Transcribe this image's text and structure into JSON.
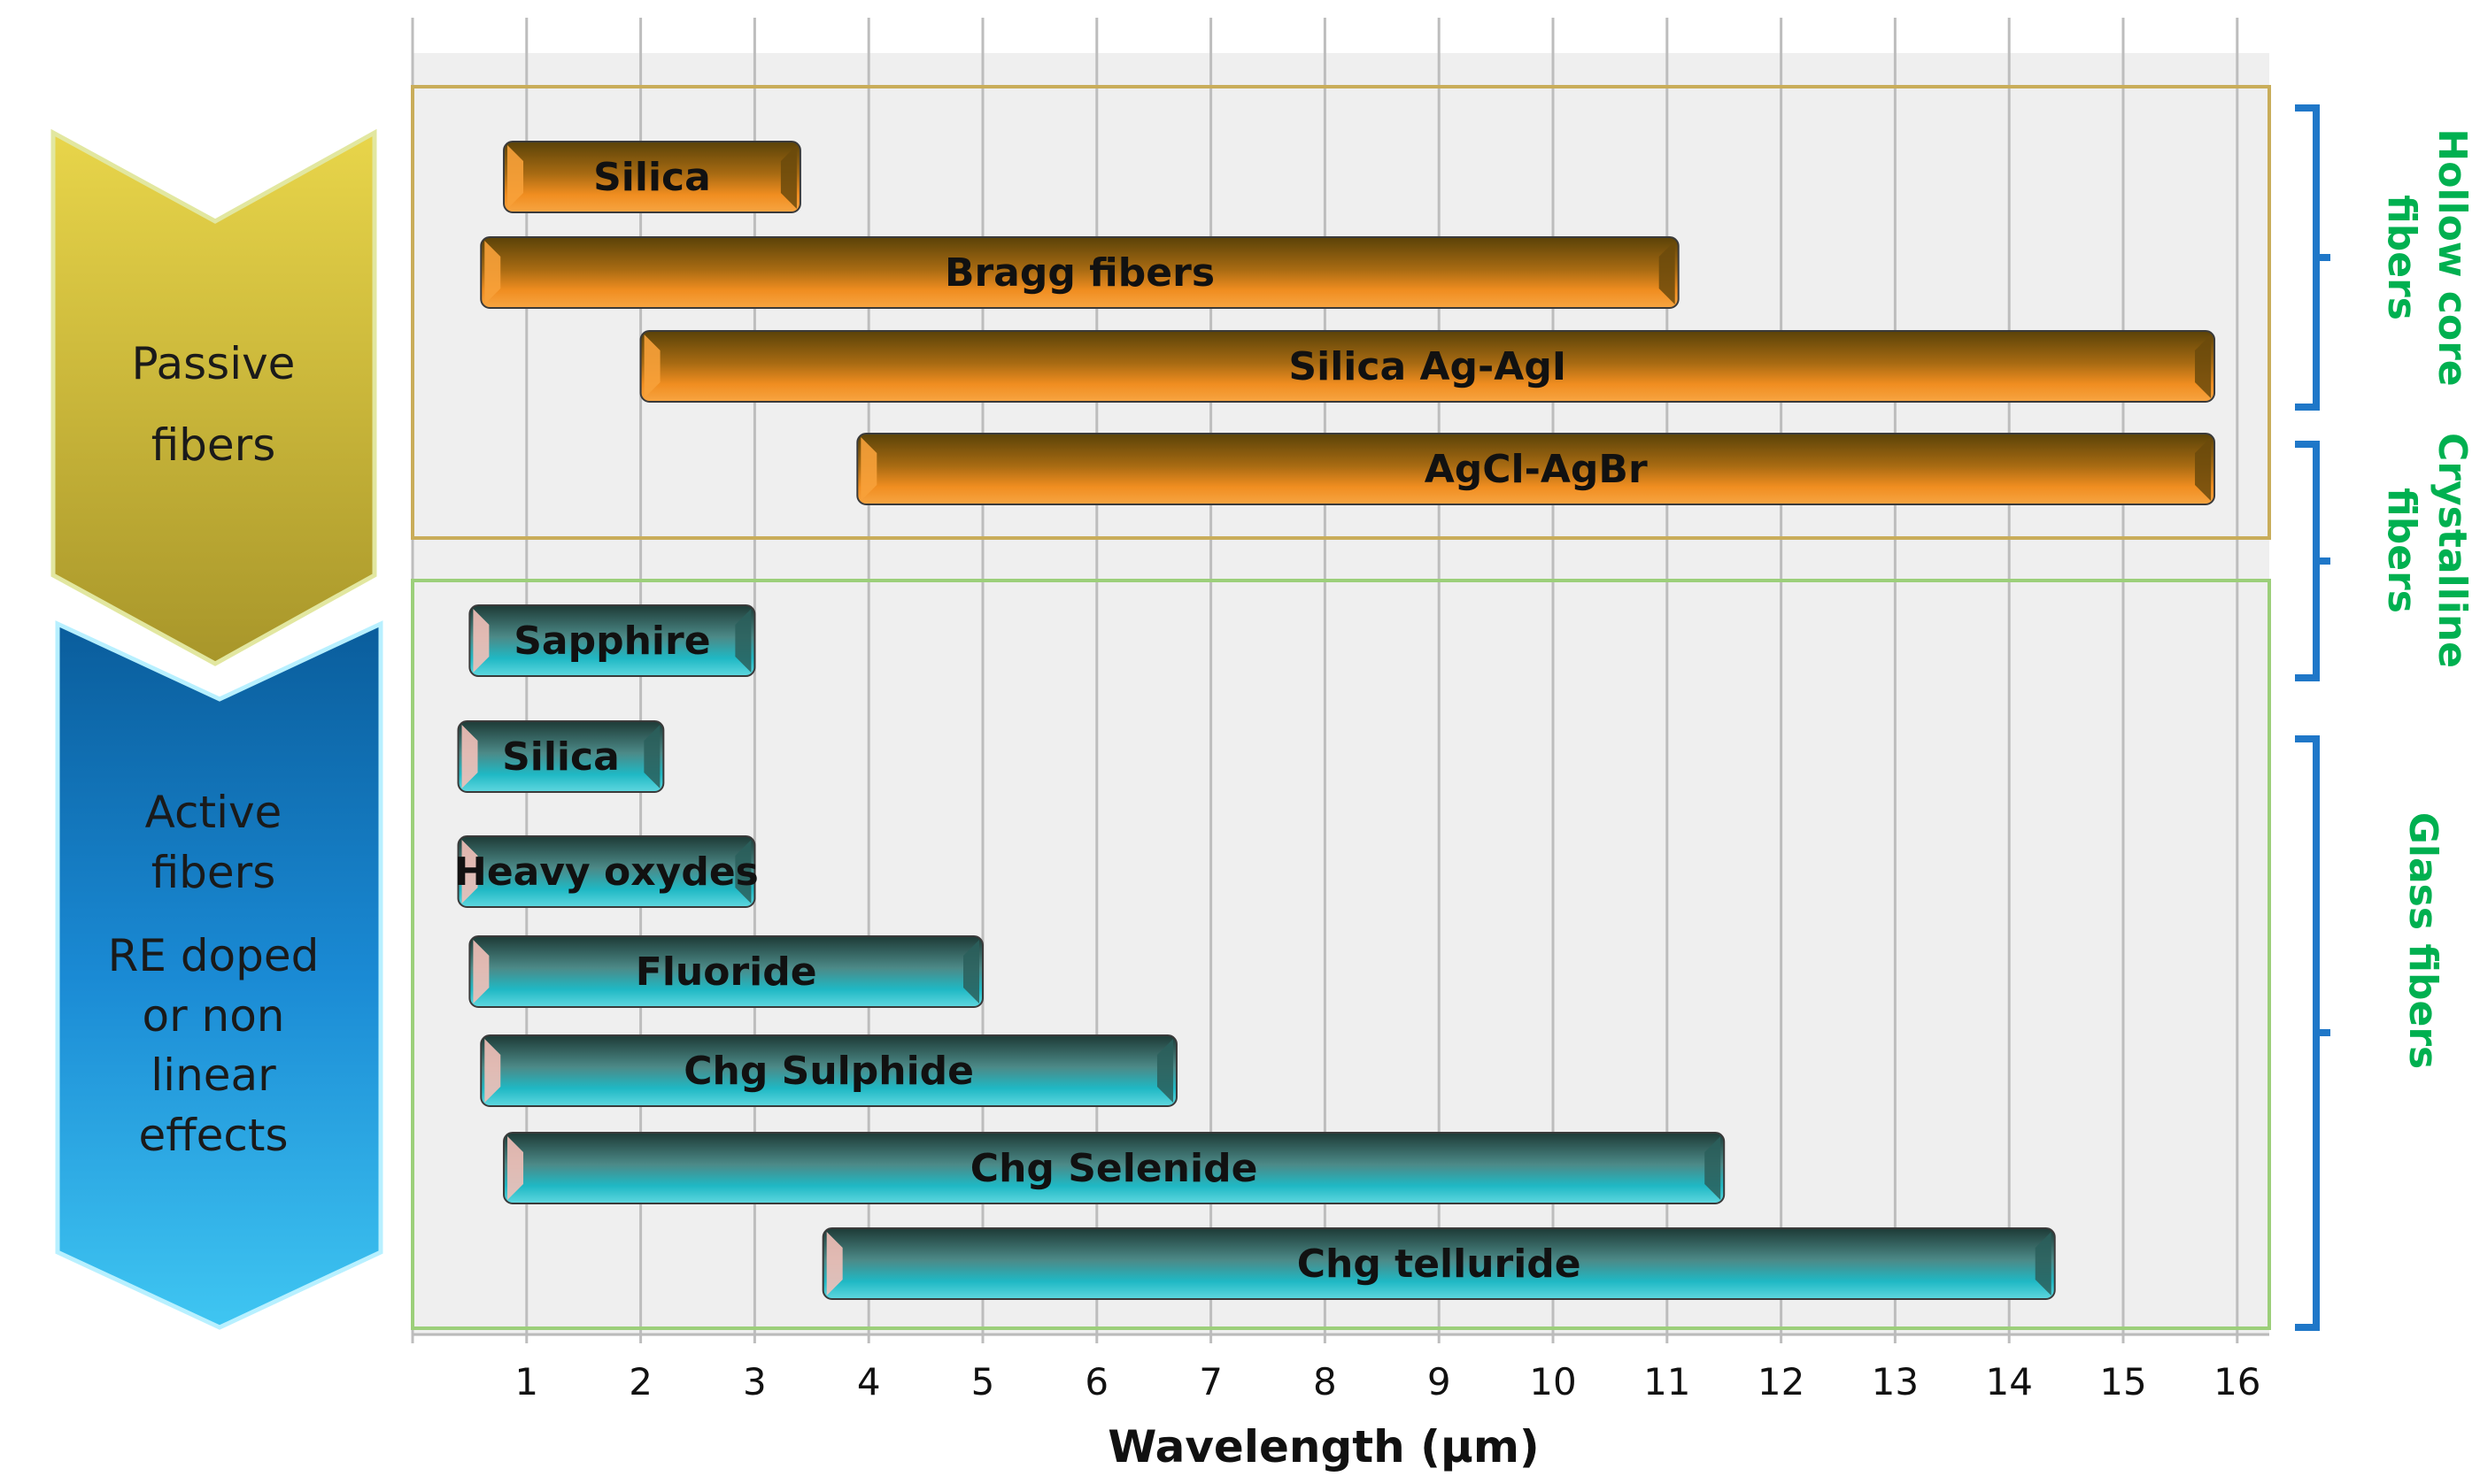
{
  "chart_data": {
    "type": "bar",
    "orientation": "horizontal-range",
    "title": "",
    "xlabel": "Wavelength (µm)",
    "xlim": [
      0,
      16.2
    ],
    "xticks": [
      "1",
      "2",
      "3",
      "4",
      "5",
      "6",
      "7",
      "8",
      "9",
      "10",
      "11",
      "12",
      "13",
      "14",
      "15",
      "16"
    ],
    "grid": true,
    "categories": [
      {
        "name": "passive",
        "label_lines": [
          "Passive",
          "fibers"
        ],
        "color": "#c8b830"
      },
      {
        "name": "active",
        "label_lines": [
          "Active",
          "fibers",
          "RE doped",
          "or non",
          "linear",
          "effects"
        ],
        "color": "#1f8fd6"
      }
    ],
    "groups": [
      {
        "name": "hollow-core",
        "label_lines": [
          "Hollow core",
          "fibers"
        ],
        "color": "#00b050",
        "bracket_color": "#1f77c8"
      },
      {
        "name": "crystalline",
        "label_lines": [
          "Crystalline",
          "fibers"
        ],
        "color": "#00b050",
        "bracket_color": "#1f77c8"
      },
      {
        "name": "glass",
        "label_lines": [
          "Glass fibers"
        ],
        "color": "#00b050",
        "bracket_color": "#1f77c8"
      }
    ],
    "series": [
      {
        "name": "Passive fibers",
        "color": "#f28c1e",
        "bars": [
          {
            "label": "Silica",
            "start": 0.8,
            "end": 3.4,
            "group": "hollow-core"
          },
          {
            "label": "Bragg fibers",
            "start": 0.6,
            "end": 11.1,
            "group": "hollow-core"
          },
          {
            "label": "Silica Ag-AgI",
            "start": 2.0,
            "end": 15.8,
            "group": "hollow-core"
          },
          {
            "label": "AgCl-AgBr",
            "start": 3.9,
            "end": 15.8,
            "group": "crystalline"
          }
        ]
      },
      {
        "name": "Active fibers",
        "color": "#1fb8c4",
        "bars": [
          {
            "label": "Sapphire",
            "start": 0.5,
            "end": 3.0,
            "group": "crystalline"
          },
          {
            "label": "Silica",
            "start": 0.4,
            "end": 2.2,
            "group": "glass"
          },
          {
            "label": "Heavy oxydes",
            "start": 0.4,
            "end": 3.0,
            "group": "glass"
          },
          {
            "label": "Fluoride",
            "start": 0.5,
            "end": 5.0,
            "group": "glass"
          },
          {
            "label": "Chg Sulphide",
            "start": 0.6,
            "end": 6.7,
            "group": "glass"
          },
          {
            "label": "Chg Selenide",
            "start": 0.8,
            "end": 11.5,
            "group": "glass"
          },
          {
            "label": "Chg telluride",
            "start": 3.6,
            "end": 14.4,
            "group": "glass"
          }
        ]
      }
    ]
  }
}
